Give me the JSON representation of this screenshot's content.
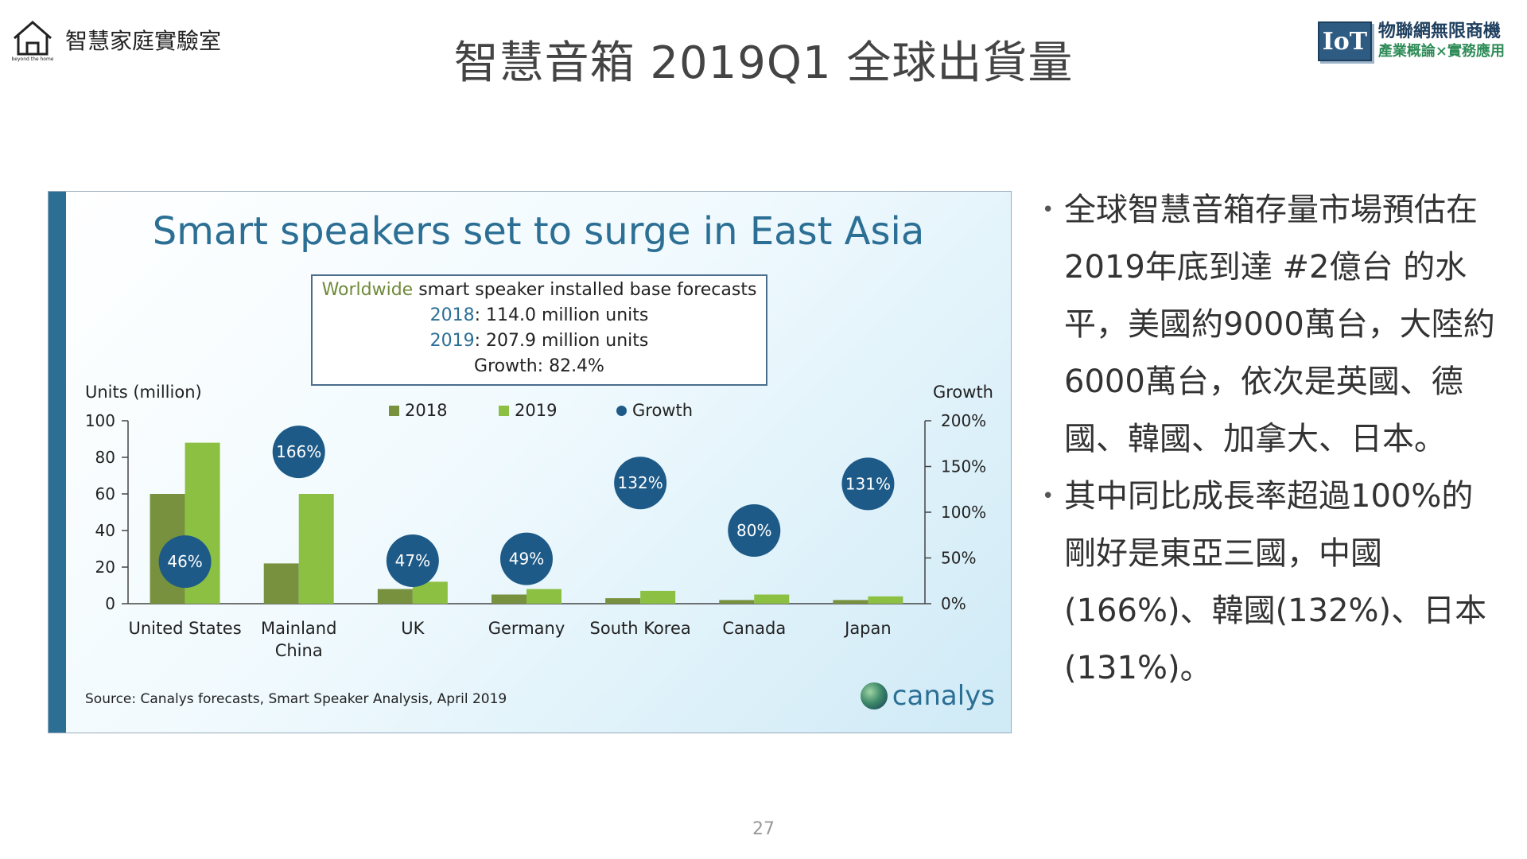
{
  "header": {
    "brand_name": "智慧家庭實驗室",
    "brand_tagline": "beyond the home",
    "slide_title": "智慧音箱 2019Q1 全球出貨量",
    "iot_badge": "IoT",
    "iot_line1": "物聯網無限商機",
    "iot_line2": "產業概論×實務應用"
  },
  "chart_data": {
    "type": "bar",
    "title": "Smart speakers set to surge in East Asia",
    "forecast_box": {
      "line1_prefix": "Worldwide",
      "line1_rest": " smart speaker installed base forecasts",
      "line2_prefix": "2018",
      "line2_rest": ": 114.0 million units",
      "line3_prefix": "2019",
      "line3_rest": ": 207.9 million units",
      "line4": "Growth: 82.4%"
    },
    "ylabel": "Units (million)",
    "y2label": "Growth",
    "ylim": [
      0,
      100
    ],
    "y2lim": [
      0,
      200
    ],
    "yticks": [
      "0",
      "20",
      "40",
      "60",
      "80",
      "100"
    ],
    "y2ticks": [
      "0%",
      "50%",
      "100%",
      "150%",
      "200%"
    ],
    "categories": [
      "United States",
      "Mainland\nChina",
      "UK",
      "Germany",
      "South Korea",
      "Canada",
      "Japan"
    ],
    "series": [
      {
        "name": "2018",
        "color": "#77913f",
        "values": [
          60,
          22,
          8,
          5,
          3,
          2,
          2
        ]
      },
      {
        "name": "2019",
        "color": "#8cc043",
        "values": [
          88,
          60,
          12,
          8,
          7,
          5,
          4
        ]
      }
    ],
    "growth": {
      "name": "Growth",
      "color": "#1d5a87",
      "values": [
        46,
        166,
        47,
        49,
        132,
        80,
        131
      ],
      "labels": [
        "46%",
        "166%",
        "47%",
        "49%",
        "132%",
        "80%",
        "131%"
      ]
    },
    "legend_position": "top",
    "grid": false,
    "source": "Source: Canalys forecasts, Smart Speaker Analysis, April 2019",
    "brand": "canalys"
  },
  "bullets": [
    "全球智慧音箱存量市場預估在2019年底到達 #2億台 的水平，美國約9000萬台，大陸約6000萬台，依次是英國、德國、韓國、加拿大、日本。",
    "其中同比成長率超過100%的剛好是東亞三國，中國(166%)、韓國(132%)、日本(131%)。"
  ],
  "page_number": "27"
}
